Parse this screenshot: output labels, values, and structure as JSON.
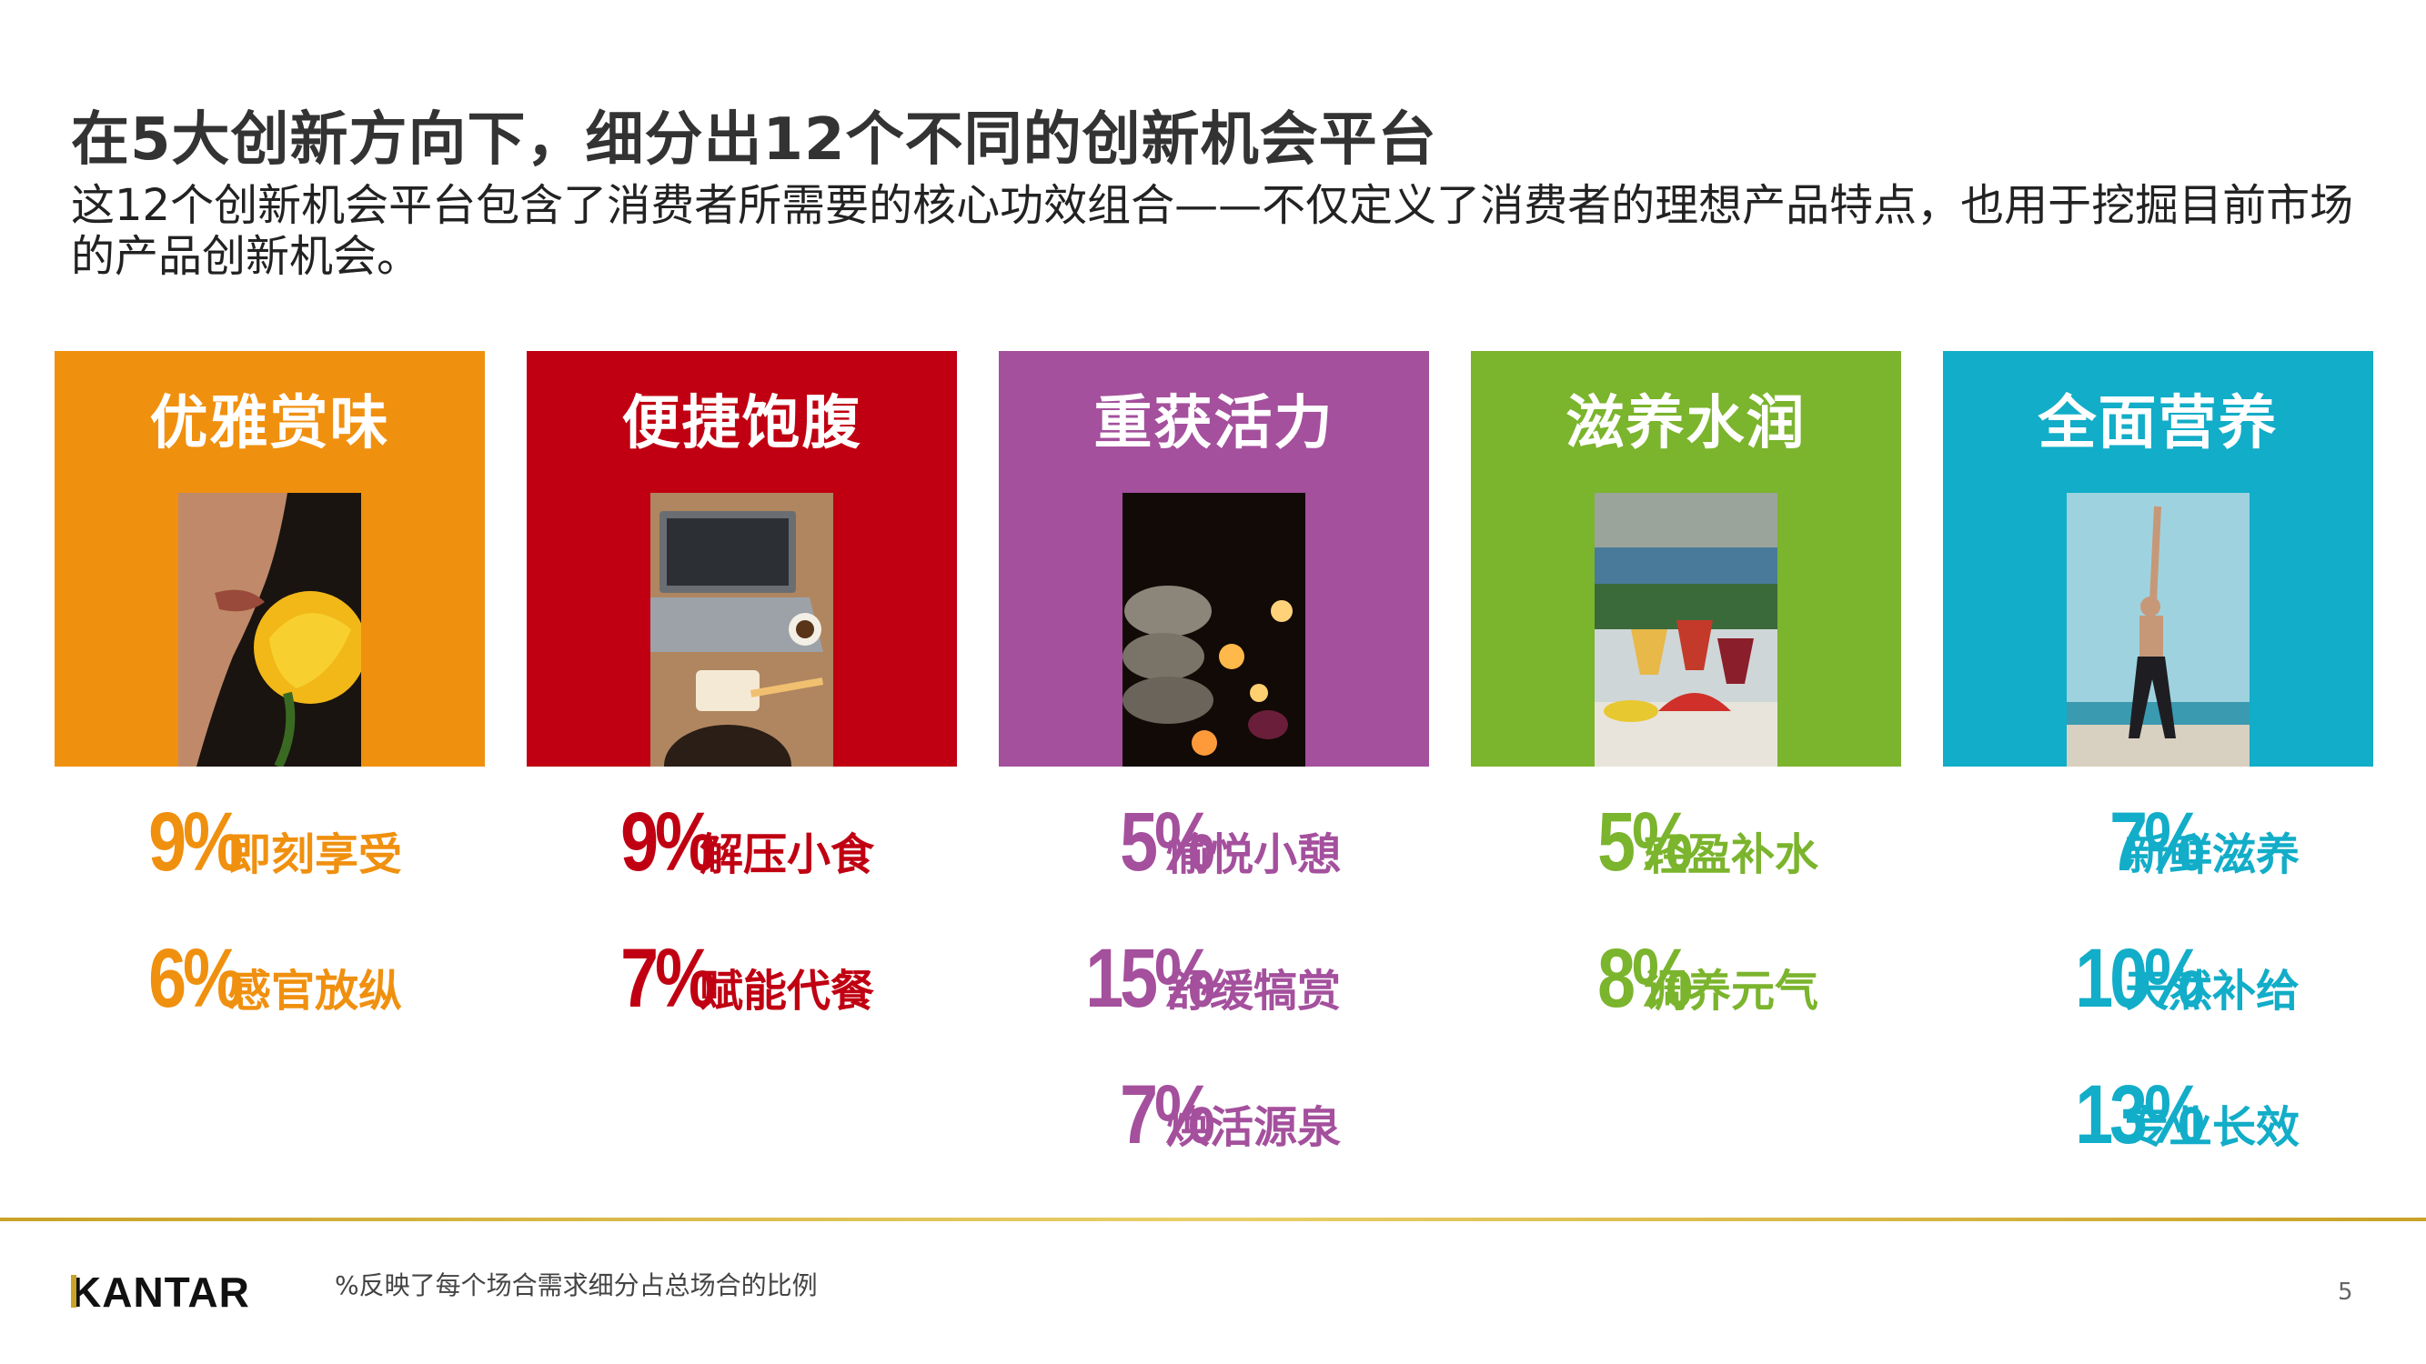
{
  "title": "在5大创新方向下，细分出12个不同的创新机会平台",
  "subtitle": "这12个创新机会平台包含了消费者所需要的核心功效组合——不仅定义了消费者的理想产品特点，也用于挖掘目前市场的产品创新机会。",
  "colors": {
    "orange": "#F0900F",
    "red": "#C00012",
    "purple": "#A4509D",
    "green": "#7BB42D",
    "teal": "#12ADC8",
    "gold": "#C9A227"
  },
  "platforms": [
    {
      "title": "优雅赏味",
      "photo_icon": "face-rose-photo",
      "stats": [
        {
          "pct": "9%",
          "label": "即刻享受"
        },
        {
          "pct": "6%",
          "label": "感官放纵"
        }
      ]
    },
    {
      "title": "便捷饱腹",
      "photo_icon": "laptop-snack-photo",
      "stats": [
        {
          "pct": "9%",
          "label": "解压小食"
        },
        {
          "pct": "7%",
          "label": "赋能代餐"
        }
      ]
    },
    {
      "title": "重获活力",
      "photo_icon": "spa-candles-photo",
      "stats": [
        {
          "pct": "5%",
          "label": "愉悦小憩"
        },
        {
          "pct": "15%",
          "label": "舒缓犒赏"
        },
        {
          "pct": "7%",
          "label": "焕活源泉"
        }
      ]
    },
    {
      "title": "滋养水润",
      "photo_icon": "juice-glasses-photo",
      "stats": [
        {
          "pct": "5%",
          "label": "轻盈补水"
        },
        {
          "pct": "8%",
          "label": "调养元气"
        }
      ]
    },
    {
      "title": "全面营养",
      "photo_icon": "beach-fitness-photo",
      "stats": [
        {
          "pct": "7%",
          "label": "新鲜滋养"
        },
        {
          "pct": "10%",
          "label": "天然补给"
        },
        {
          "pct": "13%",
          "label": "专业长效"
        }
      ]
    }
  ],
  "footer": {
    "logo": "KANTAR",
    "footnote": "%反映了每个场合需求细分占总场合的比例",
    "page_number": "5"
  }
}
